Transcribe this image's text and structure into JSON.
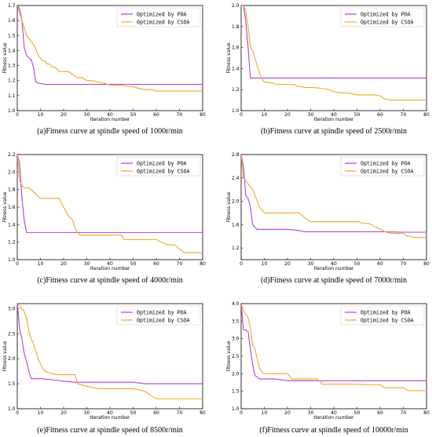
{
  "chart_data": [
    {
      "type": "line",
      "caption": "(a)Fitness curve at spindle speed of 1000r/min",
      "xlabel": "Iteration number",
      "ylabel": "Fitness value",
      "xlim": [
        0,
        80
      ],
      "ylim": [
        1.0,
        1.7
      ],
      "xticks": [
        "0",
        "10",
        "20",
        "30",
        "40",
        "50",
        "60",
        "70",
        "80"
      ],
      "yticks": [
        "1.0",
        "1.1",
        "1.2",
        "1.3",
        "1.4",
        "1.5",
        "1.6",
        "1.7"
      ],
      "legend_position": "top-right",
      "series": [
        {
          "name": "Optimized by POA",
          "color": "#b53fd9",
          "x": [
            0,
            1,
            2,
            3,
            4,
            5,
            6,
            7,
            8,
            9,
            10,
            12,
            15,
            20,
            30,
            40,
            50,
            60,
            70,
            80
          ],
          "y": [
            1.7,
            1.68,
            1.6,
            1.42,
            1.37,
            1.35,
            1.34,
            1.29,
            1.19,
            1.185,
            1.18,
            1.175,
            1.175,
            1.175,
            1.175,
            1.175,
            1.175,
            1.175,
            1.175,
            1.175
          ]
        },
        {
          "name": "Optimized by CSOA",
          "color": "#f5a623",
          "x": [
            0,
            1,
            2,
            3,
            4,
            5,
            6,
            7,
            8,
            9,
            10,
            11,
            12,
            13,
            14,
            15,
            16,
            17,
            18,
            20,
            22,
            25,
            26,
            28,
            30,
            32,
            35,
            38,
            40,
            45,
            48,
            50,
            52,
            55,
            58,
            60,
            62,
            65,
            68,
            70,
            72,
            75,
            78,
            80
          ],
          "y": [
            1.7,
            1.65,
            1.6,
            1.55,
            1.5,
            1.48,
            1.46,
            1.44,
            1.41,
            1.37,
            1.35,
            1.33,
            1.33,
            1.31,
            1.31,
            1.29,
            1.29,
            1.28,
            1.26,
            1.26,
            1.26,
            1.23,
            1.22,
            1.22,
            1.2,
            1.2,
            1.19,
            1.18,
            1.17,
            1.17,
            1.16,
            1.16,
            1.15,
            1.14,
            1.14,
            1.13,
            1.13,
            1.13,
            1.13,
            1.13,
            1.13,
            1.13,
            1.13,
            1.13
          ]
        }
      ]
    },
    {
      "type": "line",
      "caption": "(b)Fitness curve at spindle speed of 2500r/min",
      "xlabel": "Iteration number",
      "ylabel": "Fitness value",
      "xlim": [
        0,
        80
      ],
      "ylim": [
        1.0,
        2.0
      ],
      "xticks": [
        "0",
        "10",
        "20",
        "30",
        "40",
        "50",
        "60",
        "70",
        "80"
      ],
      "yticks": [
        "1.0",
        "1.2",
        "1.4",
        "1.6",
        "1.8",
        "2.0"
      ],
      "legend_position": "top-right",
      "series": [
        {
          "name": "Optimized by POA",
          "color": "#b53fd9",
          "x": [
            0,
            1,
            2,
            3,
            4,
            80
          ],
          "y": [
            2.0,
            2.0,
            1.85,
            1.6,
            1.31,
            1.31
          ]
        },
        {
          "name": "Optimized by CSOA",
          "color": "#f5a623",
          "x": [
            0,
            1,
            2,
            3,
            4,
            5,
            6,
            7,
            8,
            9,
            10,
            12,
            14,
            15,
            18,
            20,
            22,
            25,
            28,
            30,
            32,
            35,
            38,
            40,
            43,
            45,
            48,
            50,
            55,
            58,
            60,
            62,
            65,
            68,
            70,
            75,
            80
          ],
          "y": [
            2.0,
            2.0,
            1.95,
            1.8,
            1.6,
            1.57,
            1.5,
            1.42,
            1.35,
            1.3,
            1.27,
            1.27,
            1.26,
            1.25,
            1.25,
            1.25,
            1.25,
            1.23,
            1.22,
            1.22,
            1.22,
            1.21,
            1.2,
            1.18,
            1.17,
            1.17,
            1.16,
            1.15,
            1.15,
            1.15,
            1.14,
            1.11,
            1.1,
            1.1,
            1.1,
            1.1,
            1.1
          ]
        }
      ]
    },
    {
      "type": "line",
      "caption": "(c)Fitness curve at spindle speed of 4000r/min",
      "xlabel": "Iteration number",
      "ylabel": "Fitness value",
      "xlim": [
        0,
        80
      ],
      "ylim": [
        1.0,
        2.2
      ],
      "xticks": [
        "0",
        "10",
        "20",
        "30",
        "40",
        "50",
        "60",
        "70",
        "80"
      ],
      "yticks": [
        "1.0",
        "1.2",
        "1.4",
        "1.6",
        "1.8",
        "2.0",
        "2.2"
      ],
      "legend_position": "top-right",
      "series": [
        {
          "name": "Optimized by POA",
          "color": "#b53fd9",
          "x": [
            0,
            1,
            2,
            3,
            4,
            80
          ],
          "y": [
            2.2,
            2.1,
            1.7,
            1.45,
            1.31,
            1.31
          ]
        },
        {
          "name": "Optimized by CSOA",
          "color": "#f5a623",
          "x": [
            0,
            1,
            2,
            3,
            5,
            6,
            8,
            10,
            18,
            20,
            22,
            24,
            25,
            27,
            30,
            35,
            40,
            45,
            46,
            50,
            55,
            60,
            62,
            65,
            68,
            70,
            72,
            75,
            80
          ],
          "y": [
            2.2,
            1.9,
            1.85,
            1.82,
            1.82,
            1.8,
            1.75,
            1.7,
            1.7,
            1.6,
            1.5,
            1.45,
            1.35,
            1.28,
            1.28,
            1.28,
            1.28,
            1.28,
            1.23,
            1.23,
            1.23,
            1.23,
            1.2,
            1.17,
            1.17,
            1.12,
            1.08,
            1.08,
            1.08
          ]
        }
      ]
    },
    {
      "type": "line",
      "caption": "(d)Fitness curve at spindle speed of 7000r/min",
      "xlabel": "Iteration number",
      "ylabel": "Fitness value",
      "xlim": [
        0,
        80
      ],
      "ylim": [
        1.0,
        2.8
      ],
      "xticks": [
        "0",
        "10",
        "20",
        "30",
        "40",
        "50",
        "60",
        "70",
        "80"
      ],
      "yticks": [
        "1.2",
        "1.6",
        "2.0",
        "2.4",
        "2.8"
      ],
      "legend_position": "top-right",
      "series": [
        {
          "name": "Optimized by POA",
          "color": "#b53fd9",
          "x": [
            0,
            1,
            2,
            3,
            4,
            5,
            6,
            7,
            8,
            10,
            20,
            25,
            27,
            30,
            40,
            50,
            60,
            70,
            80
          ],
          "y": [
            2.8,
            2.6,
            2.1,
            2.05,
            1.9,
            1.6,
            1.55,
            1.52,
            1.52,
            1.52,
            1.52,
            1.5,
            1.48,
            1.48,
            1.48,
            1.48,
            1.48,
            1.47,
            1.47
          ]
        },
        {
          "name": "Optimized by CSOA",
          "color": "#f5a623",
          "x": [
            0,
            1,
            2,
            3,
            4,
            5,
            6,
            7,
            8,
            9,
            10,
            12,
            15,
            20,
            25,
            28,
            30,
            35,
            40,
            45,
            50,
            53,
            55,
            57,
            60,
            62,
            65,
            70,
            72,
            75,
            80
          ],
          "y": [
            2.8,
            2.4,
            2.35,
            2.3,
            2.25,
            2.2,
            2.1,
            2.0,
            1.9,
            1.85,
            1.8,
            1.8,
            1.8,
            1.8,
            1.8,
            1.7,
            1.65,
            1.65,
            1.65,
            1.65,
            1.65,
            1.62,
            1.62,
            1.58,
            1.52,
            1.48,
            1.45,
            1.45,
            1.4,
            1.38,
            1.38
          ]
        }
      ]
    },
    {
      "type": "line",
      "caption": "(e)Fitness curve at spindle speed of 8500r/min",
      "xlabel": "Iteration number",
      "ylabel": "Fitness value",
      "xlim": [
        0,
        80
      ],
      "ylim": [
        1.0,
        3.1
      ],
      "xticks": [
        "0",
        "10",
        "20",
        "30",
        "40",
        "50",
        "60",
        "70",
        "80"
      ],
      "yticks": [
        "1.0",
        "1.5",
        "2.0",
        "2.5",
        "3.0"
      ],
      "legend_position": "top-right",
      "series": [
        {
          "name": "Optimized by POA",
          "color": "#b53fd9",
          "x": [
            0,
            1,
            2,
            3,
            4,
            5,
            6,
            7,
            8,
            10,
            15,
            20,
            25,
            30,
            40,
            50,
            55,
            60,
            70,
            80
          ],
          "y": [
            3.1,
            2.6,
            2.4,
            2.1,
            1.95,
            1.75,
            1.6,
            1.6,
            1.6,
            1.6,
            1.58,
            1.55,
            1.53,
            1.53,
            1.53,
            1.53,
            1.5,
            1.5,
            1.5,
            1.5
          ]
        },
        {
          "name": "Optimized by CSOA",
          "color": "#f5a623",
          "x": [
            0,
            1,
            2,
            3,
            4,
            5,
            6,
            7,
            8,
            9,
            10,
            11,
            12,
            13,
            15,
            18,
            20,
            25,
            26,
            30,
            35,
            40,
            45,
            50,
            55,
            58,
            60,
            65,
            70,
            75,
            80
          ],
          "y": [
            3.1,
            3.05,
            3.0,
            2.95,
            2.8,
            2.55,
            2.4,
            2.3,
            2.15,
            2.0,
            1.9,
            1.8,
            1.75,
            1.73,
            1.7,
            1.68,
            1.68,
            1.68,
            1.5,
            1.45,
            1.4,
            1.4,
            1.4,
            1.4,
            1.35,
            1.25,
            1.2,
            1.2,
            1.2,
            1.2,
            1.2
          ]
        }
      ]
    },
    {
      "type": "line",
      "caption": "(f)Fitness curve at spindle speed of 10000r/min",
      "xlabel": "Iteration number",
      "ylabel": "Fitness value",
      "xlim": [
        0,
        80
      ],
      "ylim": [
        1.0,
        4.0
      ],
      "xticks": [
        "0",
        "10",
        "20",
        "30",
        "40",
        "50",
        "60",
        "70",
        "80"
      ],
      "yticks": [
        "1.0",
        "1.5",
        "2.0",
        "2.5",
        "3.0",
        "3.5",
        "4.0"
      ],
      "legend_position": "top-right",
      "series": [
        {
          "name": "Optimized by POA",
          "color": "#b53fd9",
          "x": [
            0,
            1,
            2,
            3,
            4,
            5,
            6,
            7,
            8,
            10,
            15,
            20,
            30,
            40,
            50,
            60,
            70,
            80
          ],
          "y": [
            4.0,
            3.25,
            3.25,
            3.2,
            2.7,
            2.25,
            1.95,
            1.9,
            1.85,
            1.85,
            1.85,
            1.8,
            1.8,
            1.8,
            1.8,
            1.8,
            1.8,
            1.8
          ]
        },
        {
          "name": "Optimized by CSOA",
          "color": "#f5a623",
          "x": [
            0,
            1,
            2,
            3,
            4,
            5,
            6,
            7,
            8,
            9,
            10,
            12,
            15,
            20,
            22,
            25,
            30,
            33,
            35,
            40,
            45,
            50,
            55,
            60,
            62,
            65,
            70,
            72,
            75,
            80
          ],
          "y": [
            4.0,
            3.8,
            3.7,
            3.6,
            3.3,
            2.8,
            2.7,
            2.4,
            2.15,
            2.05,
            2.0,
            2.0,
            2.0,
            2.0,
            1.85,
            1.85,
            1.85,
            1.85,
            1.7,
            1.7,
            1.7,
            1.7,
            1.68,
            1.68,
            1.6,
            1.6,
            1.6,
            1.52,
            1.52,
            1.52
          ]
        }
      ]
    }
  ]
}
